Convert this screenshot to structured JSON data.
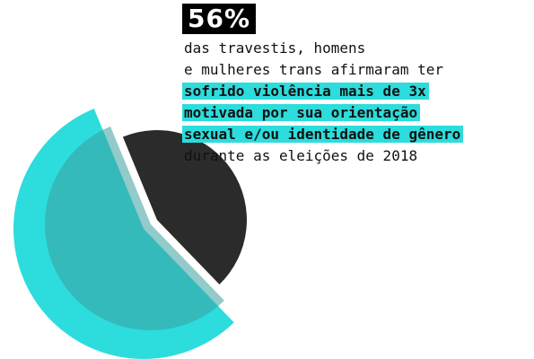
{
  "chart_data": {
    "type": "pie",
    "values": [
      56,
      44
    ],
    "value_labels": [
      "56%",
      null
    ],
    "colors": [
      "#2ddcdc",
      "#2b2b2b"
    ],
    "text_lines": [
      "das travestis, homens",
      "e mulheres trans afirmaram ter",
      "sofrido violência mais de 3x",
      "motivada por sua orientação",
      "sexual e/ou identidade de gênero",
      "durante as eleições de 2018"
    ],
    "highlight": [
      false,
      false,
      true,
      true,
      true,
      false
    ]
  }
}
